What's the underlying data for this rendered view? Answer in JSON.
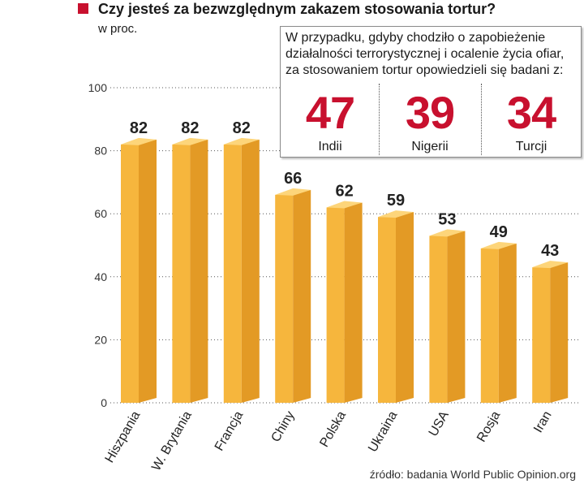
{
  "title": "Czy jesteś za bezwzględnym zakazem stosowania tortur?",
  "subtitle": "w proc.",
  "colors": {
    "accent": "#c8102e",
    "bar_front": "#f6b63d",
    "bar_side": "#e39a25",
    "bar_top": "#fdd57a",
    "grid": "#555555"
  },
  "chart_data": {
    "type": "bar",
    "title": "Czy jesteś za bezwzględnym zakazem stosowania tortur?",
    "subtitle": "w proc.",
    "categories": [
      "Hiszpania",
      "W. Brytania",
      "Francja",
      "Chiny",
      "Polska",
      "Ukraina",
      "USA",
      "Rosja",
      "Iran"
    ],
    "values": [
      82,
      82,
      82,
      66,
      62,
      59,
      53,
      49,
      43
    ],
    "yticks": [
      0,
      20,
      40,
      60,
      80,
      100
    ],
    "ylim": [
      0,
      100
    ],
    "grid": true,
    "data_labels": true
  },
  "callout": {
    "text": "W przypadku, gdyby chodziło o zapobieżenie działalności terrorystycznej i ocalenie życia ofiar, za stosowaniem tortur opowiedzieli się badani z:",
    "stats": [
      {
        "value": "47",
        "label": "Indii"
      },
      {
        "value": "39",
        "label": "Nigerii"
      },
      {
        "value": "34",
        "label": "Turcji"
      }
    ]
  },
  "source": "źródło: badania World Public Opinion.org"
}
